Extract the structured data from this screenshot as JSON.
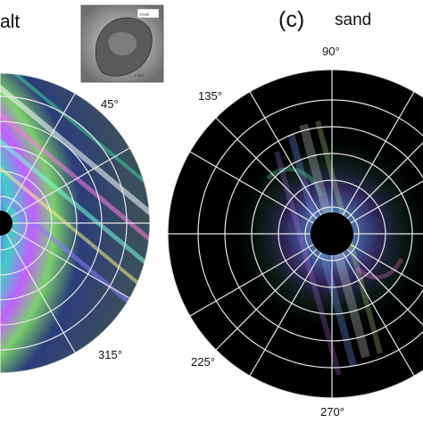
{
  "panels": [
    {
      "name": "basalt",
      "label_text": "alt",
      "angle_labels": [
        "45°",
        "315°"
      ],
      "inset_caption_lines": [
        "Scale",
        "1 mm"
      ]
    },
    {
      "name": "sand",
      "panel_letter": "(c)",
      "label_text": "sand",
      "angle_labels": [
        "90°",
        "135°",
        "225°",
        "270°"
      ]
    }
  ],
  "colors": {
    "background": "#000000",
    "grid": "#e8e8e8",
    "text": "#111111"
  }
}
